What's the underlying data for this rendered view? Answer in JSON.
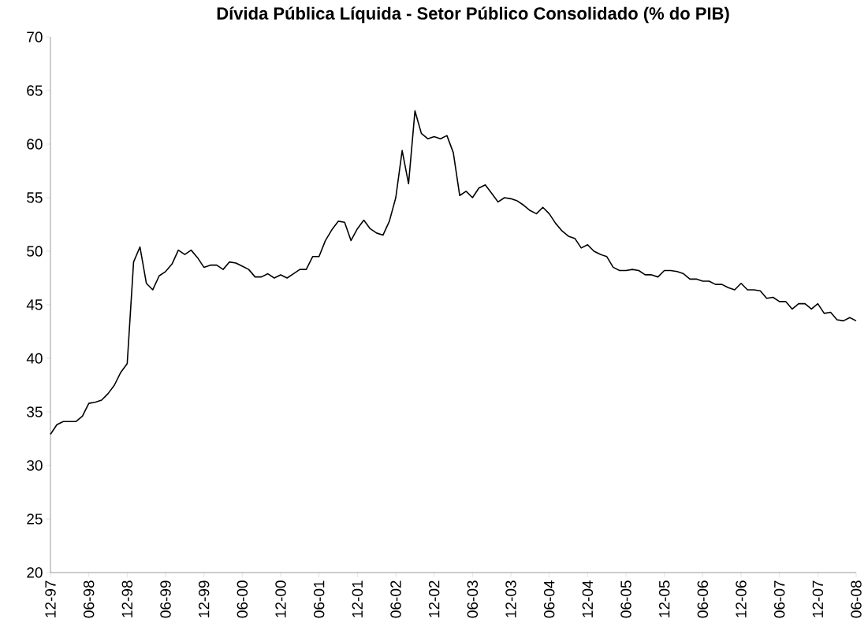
{
  "chart_data": {
    "type": "line",
    "title": "Dívida Pública Líquida - Setor Público Consolidado (% do PIB)",
    "categories": [
      "12-97",
      null,
      null,
      null,
      null,
      null,
      "06-98",
      null,
      null,
      null,
      null,
      null,
      "12-98",
      null,
      null,
      null,
      null,
      null,
      "06-99",
      null,
      null,
      null,
      null,
      null,
      "12-99",
      null,
      null,
      null,
      null,
      null,
      "06-00",
      null,
      null,
      null,
      null,
      null,
      "12-00",
      null,
      null,
      null,
      null,
      null,
      "06-01",
      null,
      null,
      null,
      null,
      null,
      "12-01",
      null,
      null,
      null,
      null,
      null,
      "06-02",
      null,
      null,
      null,
      null,
      null,
      "12-02",
      null,
      null,
      null,
      null,
      null,
      "06-03",
      null,
      null,
      null,
      null,
      null,
      "12-03",
      null,
      null,
      null,
      null,
      null,
      "06-04",
      null,
      null,
      null,
      null,
      null,
      "12-04",
      null,
      null,
      null,
      null,
      null,
      "06-05",
      null,
      null,
      null,
      null,
      null,
      "12-05",
      null,
      null,
      null,
      null,
      null,
      "06-06",
      null,
      null,
      null,
      null,
      null,
      "12-06",
      null,
      null,
      null,
      null,
      null,
      "06-07",
      null,
      null,
      null,
      null,
      null,
      "12-07",
      null,
      null,
      null,
      null,
      null,
      "06-08"
    ],
    "values": [
      32.9,
      33.8,
      34.1,
      34.1,
      34.1,
      34.6,
      35.8,
      35.9,
      36.1,
      36.7,
      37.5,
      38.7,
      39.5,
      49.0,
      50.4,
      47.0,
      46.4,
      47.7,
      48.1,
      48.8,
      50.1,
      49.7,
      50.1,
      49.4,
      48.5,
      48.7,
      48.7,
      48.3,
      49.0,
      48.9,
      48.6,
      48.3,
      47.6,
      47.6,
      47.9,
      47.5,
      47.8,
      47.5,
      47.9,
      48.3,
      48.3,
      49.5,
      49.5,
      51.0,
      52.0,
      52.8,
      52.7,
      51.0,
      52.1,
      52.9,
      52.1,
      51.7,
      51.5,
      52.8,
      55.0,
      59.4,
      56.3,
      63.1,
      61.0,
      60.5,
      60.7,
      60.5,
      60.8,
      59.2,
      55.2,
      55.6,
      55.0,
      55.9,
      56.2,
      55.4,
      54.6,
      55.0,
      54.9,
      54.7,
      54.3,
      53.8,
      53.5,
      54.1,
      53.5,
      52.6,
      51.9,
      51.4,
      51.2,
      50.3,
      50.6,
      50.0,
      49.7,
      49.5,
      48.5,
      48.2,
      48.2,
      48.3,
      48.2,
      47.8,
      47.8,
      47.6,
      48.2,
      48.2,
      48.1,
      47.9,
      47.4,
      47.4,
      47.2,
      47.2,
      46.9,
      46.9,
      46.6,
      46.4,
      47.0,
      46.4,
      46.4,
      46.3,
      45.6,
      45.7,
      45.3,
      45.3,
      44.6,
      45.1,
      45.1,
      44.6,
      45.1,
      44.2,
      44.3,
      43.6,
      43.5,
      43.8,
      43.5
    ],
    "color": "#000000",
    "ylim": [
      20,
      70
    ],
    "yticks": [
      20,
      25,
      30,
      35,
      40,
      45,
      50,
      55,
      60,
      65,
      70
    ]
  }
}
